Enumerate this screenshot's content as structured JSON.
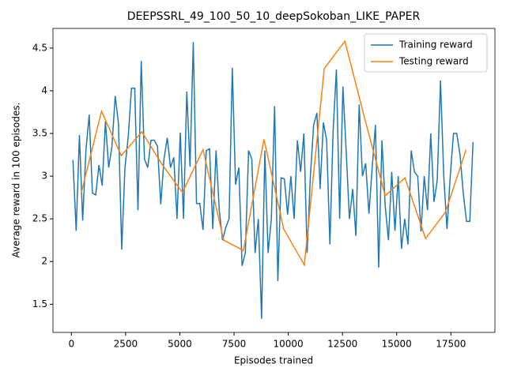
{
  "chart_data": {
    "type": "line",
    "title": "DEEPSSRL_49_100_50_10_deepSokoban_LIKE_PAPER",
    "xlabel": "Episodes trained",
    "ylabel": "Average reward in 100 episodes.",
    "xlim": [
      -850,
      19530
    ],
    "ylim": [
      1.17,
      4.73
    ],
    "xticks": [
      0,
      2500,
      5000,
      7500,
      10000,
      12500,
      15000,
      17500
    ],
    "yticks": [
      1.5,
      2.0,
      2.5,
      3.0,
      3.5,
      4.0,
      4.5
    ],
    "legend": "upper right",
    "series": [
      {
        "name": "Training reward",
        "color": "#1f77b4",
        "x": [
          70,
          220,
          370,
          520,
          670,
          820,
          970,
          1120,
          1270,
          1420,
          1570,
          1720,
          1870,
          2020,
          2170,
          2320,
          2470,
          2620,
          2770,
          2920,
          3070,
          3220,
          3370,
          3520,
          3670,
          3820,
          3970,
          4120,
          4270,
          4420,
          4570,
          4720,
          4870,
          5020,
          5170,
          5320,
          5470,
          5620,
          5770,
          5920,
          6070,
          6220,
          6370,
          6520,
          6670,
          6820,
          6970,
          7120,
          7270,
          7420,
          7570,
          7720,
          7870,
          8020,
          8170,
          8320,
          8470,
          8620,
          8770,
          8920,
          9070,
          9220,
          9370,
          9520,
          9670,
          9820,
          9970,
          10120,
          10270,
          10420,
          10570,
          10720,
          10870,
          11020,
          11170,
          11320,
          11470,
          11620,
          11770,
          11920,
          12070,
          12220,
          12370,
          12520,
          12670,
          12820,
          12970,
          13120,
          13270,
          13420,
          13570,
          13720,
          13870,
          14020,
          14170,
          14320,
          14470,
          14620,
          14770,
          14920,
          15070,
          15220,
          15370,
          15520,
          15670,
          15820,
          15970,
          16120,
          16270,
          16420,
          16570,
          16720,
          16870,
          17020,
          17170,
          17320,
          17470,
          17620,
          17770,
          17920,
          18070,
          18220,
          18370,
          18520
        ],
        "values": [
          3.19,
          2.36,
          3.48,
          2.48,
          3.3,
          3.72,
          2.8,
          2.78,
          3.13,
          2.89,
          3.64,
          3.1,
          3.35,
          3.94,
          3.62,
          2.14,
          3.1,
          3.46,
          4.03,
          4.03,
          2.6,
          4.35,
          3.2,
          3.1,
          3.42,
          3.42,
          3.35,
          2.67,
          3.2,
          3.45,
          3.1,
          3.22,
          2.5,
          3.51,
          2.5,
          3.99,
          3.11,
          4.57,
          2.68,
          2.68,
          2.37,
          3.3,
          3.32,
          2.38,
          3.3,
          2.6,
          2.25,
          2.4,
          2.5,
          4.27,
          2.9,
          3.1,
          1.95,
          2.1,
          3.3,
          3.2,
          2.1,
          2.5,
          1.33,
          3.3,
          2.1,
          2.5,
          3.82,
          1.77,
          2.98,
          2.97,
          2.55,
          3.0,
          2.5,
          3.42,
          3.05,
          3.5,
          2.1,
          3.0,
          3.6,
          3.74,
          2.85,
          3.63,
          3.42,
          2.2,
          3.54,
          4.25,
          2.5,
          4.05,
          3.3,
          2.5,
          2.85,
          2.3,
          3.84,
          3.0,
          3.15,
          2.56,
          3.1,
          3.6,
          1.93,
          3.42,
          2.65,
          2.25,
          3.05,
          2.36,
          3.0,
          2.15,
          2.5,
          2.2,
          3.3,
          3.05,
          3.0,
          2.35,
          3.0,
          2.6,
          3.5,
          2.7,
          2.95,
          4.12,
          3.0,
          2.38,
          3.0,
          3.5,
          3.5,
          3.25,
          2.8,
          2.47,
          2.47,
          3.4
        ]
      },
      {
        "name": "Testing reward",
        "color": "#ff7f0e",
        "x": [
          440,
          1390,
          2300,
          3250,
          4170,
          5120,
          6070,
          7020,
          7930,
          8880,
          9790,
          10740,
          11660,
          12610,
          13520,
          14470,
          15380,
          16330,
          17250,
          18200
        ],
        "values": [
          2.79,
          3.76,
          3.24,
          3.52,
          3.14,
          2.81,
          3.31,
          2.25,
          2.13,
          3.43,
          2.38,
          1.96,
          4.26,
          4.58,
          3.68,
          2.77,
          2.98,
          2.27,
          2.58,
          3.31
        ]
      }
    ]
  }
}
